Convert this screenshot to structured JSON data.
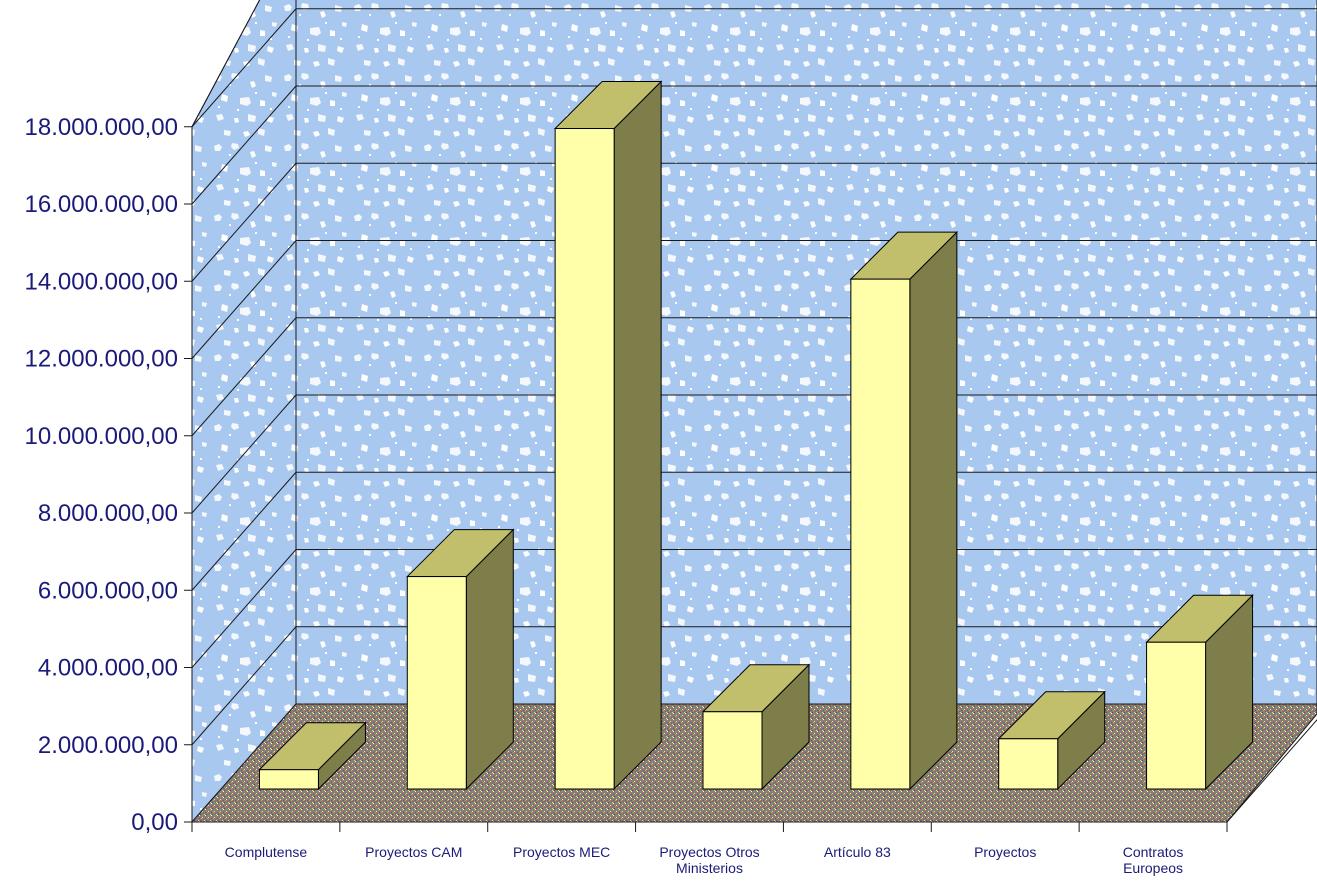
{
  "chart_data": {
    "type": "bar",
    "title": "",
    "xlabel": "",
    "ylabel": "",
    "categories": [
      [
        "Complutense"
      ],
      [
        "Proyectos CAM"
      ],
      [
        "Proyectos MEC"
      ],
      [
        "Proyectos Otros",
        "Ministerios"
      ],
      [
        "Artículo 83"
      ],
      [
        "Proyectos"
      ],
      [
        "Contratos",
        "Europeos"
      ]
    ],
    "values": [
      500000,
      5500000,
      17100000,
      2000000,
      13200000,
      1300000,
      3800000
    ],
    "ylim": [
      0,
      18000000
    ],
    "yticks": [
      0,
      2000000,
      4000000,
      6000000,
      8000000,
      10000000,
      12000000,
      14000000,
      16000000,
      18000000
    ],
    "ytick_labels": [
      "0,00",
      "2.000.000,00",
      "4.000.000,00",
      "6.000.000,00",
      "8.000.000,00",
      "10.000.000,00",
      "12.000.000,00",
      "14.000.000,00",
      "16.000.000,00",
      "18.000.000,00"
    ],
    "grid": true,
    "legend": "none",
    "colors": {
      "bar_front": "#ffffaa",
      "bar_top": "#c1bf6c",
      "bar_side": "#7e7e4a",
      "wall": "#a9c8f0",
      "wall_speckle": "#f4f8fc",
      "floor": "#8a7e6a",
      "text": "#1a1a7a",
      "grid": "#1a1a1a"
    }
  }
}
